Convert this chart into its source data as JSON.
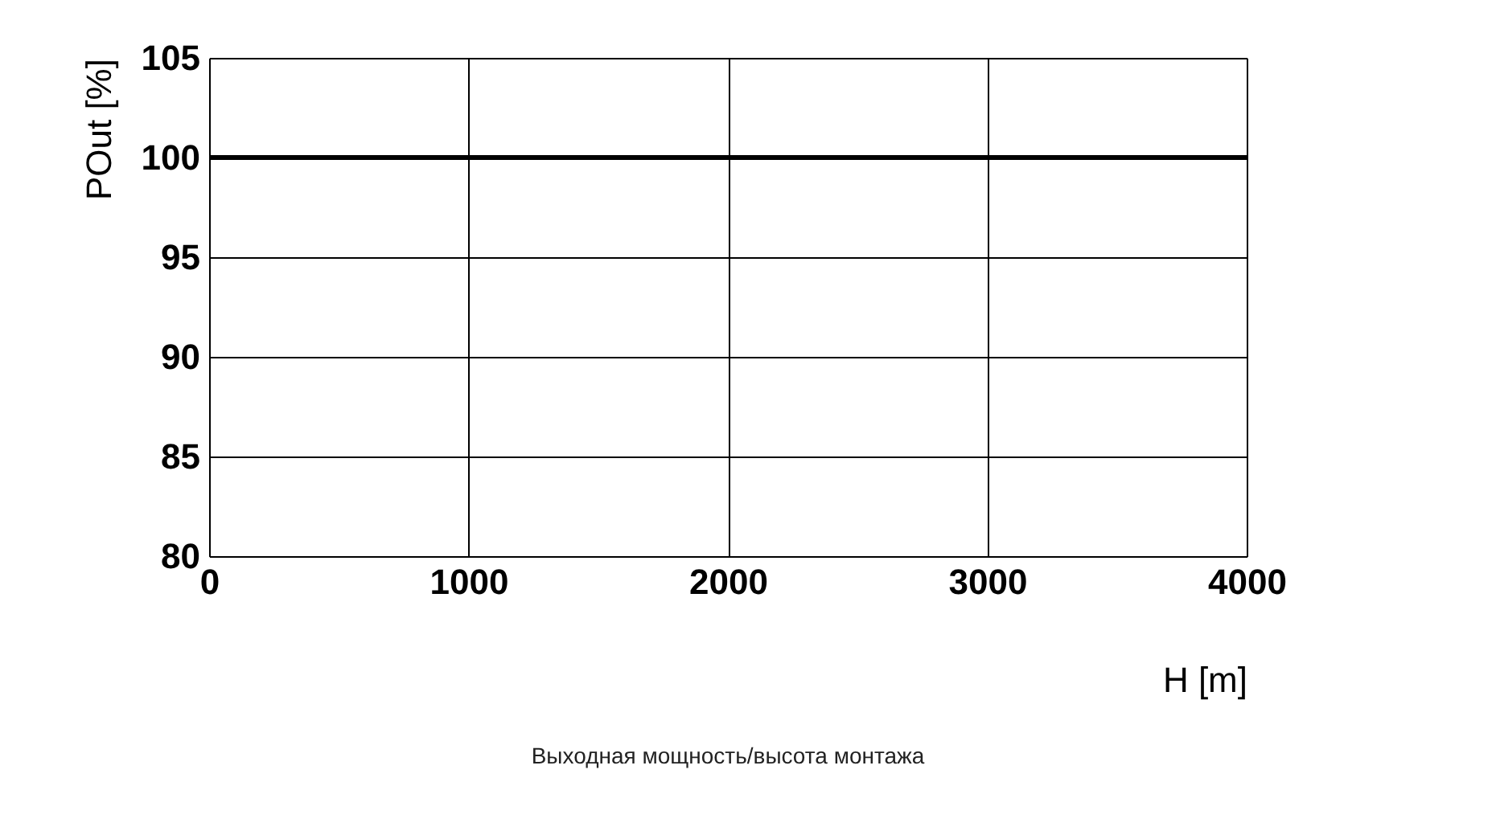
{
  "chart_data": {
    "type": "line",
    "xlabel": "H [m]",
    "ylabel": "POut [%]",
    "annotations": [
      "Выходная мощность/высота монтажа"
    ],
    "x": [
      0,
      4000
    ],
    "series": [
      {
        "color": "#000000",
        "values": [
          100,
          100
        ]
      }
    ],
    "xlim": [
      0,
      4000
    ],
    "xticks": [
      0,
      1000,
      2000,
      3000,
      4000
    ],
    "ylim": [
      80,
      105
    ],
    "yticks": [
      80,
      85,
      90,
      95,
      100,
      105
    ],
    "grid": true,
    "legend": false,
    "marker": "none",
    "line_style": "solid"
  }
}
